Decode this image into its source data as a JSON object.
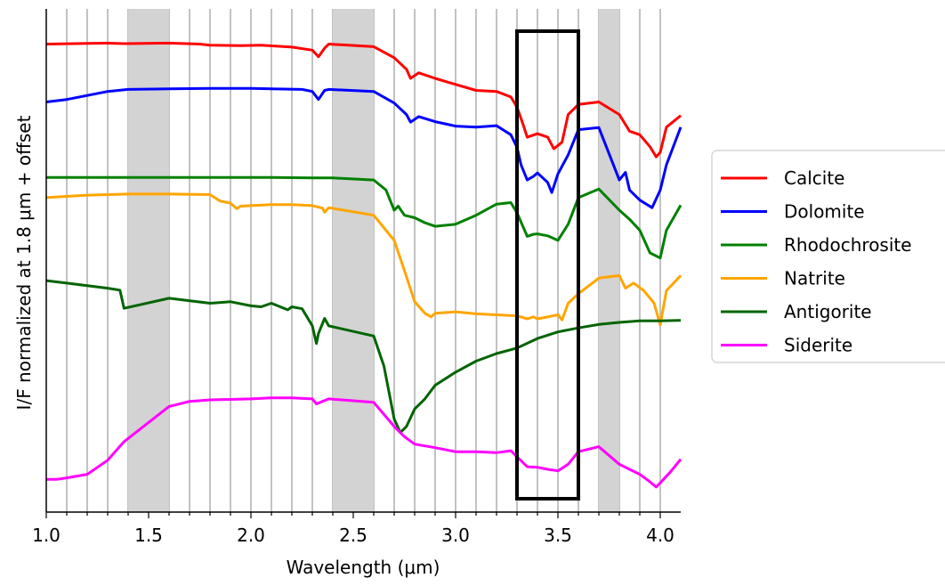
{
  "chart_data": {
    "type": "line",
    "xlabel": "Wavelength (μm)",
    "ylabel": "I/F normalized at 1.8 μm + offset",
    "xlim": [
      1.0,
      4.1
    ],
    "x_ticks": [
      "1.0",
      "1.5",
      "2.0",
      "2.5",
      "3.0",
      "3.5",
      "4.0"
    ],
    "y_ticks": [],
    "grid": "vertical lines every 0.1 μm",
    "legend_position": "right",
    "shaded_bands": [
      [
        1.4,
        1.6
      ],
      [
        2.4,
        2.6
      ],
      [
        3.7,
        3.8
      ]
    ],
    "highlight_box": {
      "x": [
        3.3,
        3.6
      ],
      "color": "#000000"
    },
    "series": [
      {
        "name": "Calcite",
        "color": "#ff0000",
        "points": [
          [
            1.0,
            0.93
          ],
          [
            1.3,
            0.932
          ],
          [
            1.38,
            0.931
          ],
          [
            1.6,
            0.932
          ],
          [
            1.75,
            0.93
          ],
          [
            1.8,
            0.928
          ],
          [
            1.95,
            0.927
          ],
          [
            2.05,
            0.928
          ],
          [
            2.2,
            0.924
          ],
          [
            2.3,
            0.918
          ],
          [
            2.33,
            0.905
          ],
          [
            2.36,
            0.922
          ],
          [
            2.38,
            0.93
          ],
          [
            2.6,
            0.925
          ],
          [
            2.7,
            0.903
          ],
          [
            2.76,
            0.88
          ],
          [
            2.78,
            0.862
          ],
          [
            2.82,
            0.873
          ],
          [
            2.9,
            0.862
          ],
          [
            3.0,
            0.85
          ],
          [
            3.1,
            0.838
          ],
          [
            3.2,
            0.836
          ],
          [
            3.27,
            0.825
          ],
          [
            3.3,
            0.805
          ],
          [
            3.33,
            0.77
          ],
          [
            3.35,
            0.745
          ],
          [
            3.4,
            0.752
          ],
          [
            3.45,
            0.745
          ],
          [
            3.48,
            0.722
          ],
          [
            3.52,
            0.735
          ],
          [
            3.55,
            0.79
          ],
          [
            3.6,
            0.81
          ],
          [
            3.7,
            0.815
          ],
          [
            3.8,
            0.79
          ],
          [
            3.85,
            0.757
          ],
          [
            3.9,
            0.75
          ],
          [
            3.95,
            0.726
          ],
          [
            3.98,
            0.706
          ],
          [
            4.0,
            0.715
          ],
          [
            4.03,
            0.765
          ],
          [
            4.1,
            0.788
          ]
        ]
      },
      {
        "name": "Dolomite",
        "color": "#0000ff",
        "points": [
          [
            1.0,
            0.815
          ],
          [
            1.1,
            0.82
          ],
          [
            1.2,
            0.828
          ],
          [
            1.3,
            0.836
          ],
          [
            1.4,
            0.84
          ],
          [
            1.6,
            0.841
          ],
          [
            1.8,
            0.842
          ],
          [
            2.0,
            0.842
          ],
          [
            2.1,
            0.841
          ],
          [
            2.25,
            0.84
          ],
          [
            2.3,
            0.836
          ],
          [
            2.33,
            0.82
          ],
          [
            2.36,
            0.838
          ],
          [
            2.38,
            0.84
          ],
          [
            2.6,
            0.836
          ],
          [
            2.7,
            0.813
          ],
          [
            2.76,
            0.79
          ],
          [
            2.78,
            0.775
          ],
          [
            2.82,
            0.786
          ],
          [
            2.9,
            0.776
          ],
          [
            3.0,
            0.767
          ],
          [
            3.1,
            0.765
          ],
          [
            3.2,
            0.768
          ],
          [
            3.27,
            0.75
          ],
          [
            3.3,
            0.725
          ],
          [
            3.32,
            0.69
          ],
          [
            3.35,
            0.66
          ],
          [
            3.38,
            0.667
          ],
          [
            3.4,
            0.674
          ],
          [
            3.45,
            0.655
          ],
          [
            3.47,
            0.635
          ],
          [
            3.5,
            0.672
          ],
          [
            3.55,
            0.71
          ],
          [
            3.6,
            0.76
          ],
          [
            3.7,
            0.764
          ],
          [
            3.8,
            0.66
          ],
          [
            3.83,
            0.675
          ],
          [
            3.85,
            0.64
          ],
          [
            3.9,
            0.62
          ],
          [
            3.96,
            0.605
          ],
          [
            4.0,
            0.64
          ],
          [
            4.03,
            0.69
          ],
          [
            4.1,
            0.765
          ]
        ]
      },
      {
        "name": "Rhodochrosite",
        "color": "#008000",
        "points": [
          [
            1.0,
            0.665
          ],
          [
            1.2,
            0.665
          ],
          [
            1.4,
            0.665
          ],
          [
            1.6,
            0.665
          ],
          [
            1.9,
            0.665
          ],
          [
            2.1,
            0.665
          ],
          [
            2.3,
            0.664
          ],
          [
            2.4,
            0.664
          ],
          [
            2.6,
            0.66
          ],
          [
            2.66,
            0.64
          ],
          [
            2.7,
            0.6
          ],
          [
            2.72,
            0.608
          ],
          [
            2.75,
            0.59
          ],
          [
            2.8,
            0.585
          ],
          [
            2.85,
            0.575
          ],
          [
            2.9,
            0.568
          ],
          [
            3.0,
            0.572
          ],
          [
            3.1,
            0.59
          ],
          [
            3.2,
            0.612
          ],
          [
            3.27,
            0.615
          ],
          [
            3.3,
            0.595
          ],
          [
            3.35,
            0.548
          ],
          [
            3.38,
            0.552
          ],
          [
            3.4,
            0.553
          ],
          [
            3.45,
            0.549
          ],
          [
            3.5,
            0.54
          ],
          [
            3.55,
            0.572
          ],
          [
            3.6,
            0.625
          ],
          [
            3.7,
            0.642
          ],
          [
            3.8,
            0.6
          ],
          [
            3.85,
            0.582
          ],
          [
            3.9,
            0.56
          ],
          [
            3.95,
            0.515
          ],
          [
            4.0,
            0.505
          ],
          [
            4.03,
            0.56
          ],
          [
            4.1,
            0.61
          ]
        ]
      },
      {
        "name": "Natrite",
        "color": "#ffa500",
        "points": [
          [
            1.0,
            0.625
          ],
          [
            1.2,
            0.63
          ],
          [
            1.4,
            0.632
          ],
          [
            1.6,
            0.632
          ],
          [
            1.8,
            0.631
          ],
          [
            1.85,
            0.618
          ],
          [
            1.9,
            0.614
          ],
          [
            1.93,
            0.603
          ],
          [
            1.95,
            0.608
          ],
          [
            2.0,
            0.609
          ],
          [
            2.1,
            0.611
          ],
          [
            2.2,
            0.611
          ],
          [
            2.3,
            0.609
          ],
          [
            2.35,
            0.604
          ],
          [
            2.36,
            0.596
          ],
          [
            2.38,
            0.605
          ],
          [
            2.6,
            0.59
          ],
          [
            2.7,
            0.54
          ],
          [
            2.75,
            0.48
          ],
          [
            2.8,
            0.418
          ],
          [
            2.85,
            0.395
          ],
          [
            2.88,
            0.388
          ],
          [
            2.9,
            0.395
          ],
          [
            3.0,
            0.398
          ],
          [
            3.1,
            0.394
          ],
          [
            3.2,
            0.392
          ],
          [
            3.3,
            0.39
          ],
          [
            3.35,
            0.384
          ],
          [
            3.38,
            0.388
          ],
          [
            3.4,
            0.384
          ],
          [
            3.45,
            0.388
          ],
          [
            3.5,
            0.392
          ],
          [
            3.52,
            0.382
          ],
          [
            3.55,
            0.415
          ],
          [
            3.6,
            0.434
          ],
          [
            3.7,
            0.465
          ],
          [
            3.8,
            0.47
          ],
          [
            3.83,
            0.445
          ],
          [
            3.87,
            0.455
          ],
          [
            3.92,
            0.44
          ],
          [
            3.97,
            0.415
          ],
          [
            4.0,
            0.372
          ],
          [
            4.03,
            0.44
          ],
          [
            4.1,
            0.47
          ]
        ]
      },
      {
        "name": "Antigorite",
        "color": "#006400",
        "points": [
          [
            1.0,
            0.46
          ],
          [
            1.1,
            0.455
          ],
          [
            1.2,
            0.45
          ],
          [
            1.3,
            0.445
          ],
          [
            1.36,
            0.441
          ],
          [
            1.38,
            0.405
          ],
          [
            1.6,
            0.425
          ],
          [
            1.8,
            0.415
          ],
          [
            1.9,
            0.418
          ],
          [
            2.0,
            0.41
          ],
          [
            2.05,
            0.408
          ],
          [
            2.1,
            0.415
          ],
          [
            2.18,
            0.402
          ],
          [
            2.2,
            0.408
          ],
          [
            2.25,
            0.404
          ],
          [
            2.3,
            0.37
          ],
          [
            2.32,
            0.335
          ],
          [
            2.33,
            0.355
          ],
          [
            2.36,
            0.385
          ],
          [
            2.38,
            0.37
          ],
          [
            2.6,
            0.35
          ],
          [
            2.65,
            0.29
          ],
          [
            2.7,
            0.185
          ],
          [
            2.73,
            0.158
          ],
          [
            2.76,
            0.17
          ],
          [
            2.8,
            0.205
          ],
          [
            2.85,
            0.225
          ],
          [
            2.9,
            0.252
          ],
          [
            3.0,
            0.278
          ],
          [
            3.1,
            0.3
          ],
          [
            3.2,
            0.315
          ],
          [
            3.3,
            0.326
          ],
          [
            3.4,
            0.345
          ],
          [
            3.5,
            0.358
          ],
          [
            3.6,
            0.366
          ],
          [
            3.7,
            0.373
          ],
          [
            3.8,
            0.377
          ],
          [
            3.9,
            0.38
          ],
          [
            4.0,
            0.38
          ],
          [
            4.1,
            0.381
          ]
        ]
      },
      {
        "name": "Siderite",
        "color": "#ff00ff",
        "points": [
          [
            1.0,
            0.065
          ],
          [
            1.05,
            0.065
          ],
          [
            1.1,
            0.068
          ],
          [
            1.2,
            0.075
          ],
          [
            1.3,
            0.103
          ],
          [
            1.38,
            0.14
          ],
          [
            1.6,
            0.21
          ],
          [
            1.7,
            0.22
          ],
          [
            1.8,
            0.223
          ],
          [
            2.0,
            0.225
          ],
          [
            2.1,
            0.227
          ],
          [
            2.2,
            0.227
          ],
          [
            2.3,
            0.225
          ],
          [
            2.32,
            0.215
          ],
          [
            2.35,
            0.22
          ],
          [
            2.38,
            0.225
          ],
          [
            2.6,
            0.218
          ],
          [
            2.7,
            0.17
          ],
          [
            2.75,
            0.15
          ],
          [
            2.8,
            0.135
          ],
          [
            2.9,
            0.128
          ],
          [
            3.0,
            0.12
          ],
          [
            3.1,
            0.12
          ],
          [
            3.2,
            0.118
          ],
          [
            3.27,
            0.122
          ],
          [
            3.3,
            0.11
          ],
          [
            3.35,
            0.09
          ],
          [
            3.4,
            0.089
          ],
          [
            3.45,
            0.085
          ],
          [
            3.5,
            0.082
          ],
          [
            3.55,
            0.095
          ],
          [
            3.6,
            0.12
          ],
          [
            3.7,
            0.13
          ],
          [
            3.8,
            0.095
          ],
          [
            3.85,
            0.085
          ],
          [
            3.9,
            0.075
          ],
          [
            3.95,
            0.06
          ],
          [
            3.98,
            0.05
          ],
          [
            4.0,
            0.058
          ],
          [
            4.05,
            0.08
          ],
          [
            4.1,
            0.105
          ]
        ]
      }
    ]
  }
}
